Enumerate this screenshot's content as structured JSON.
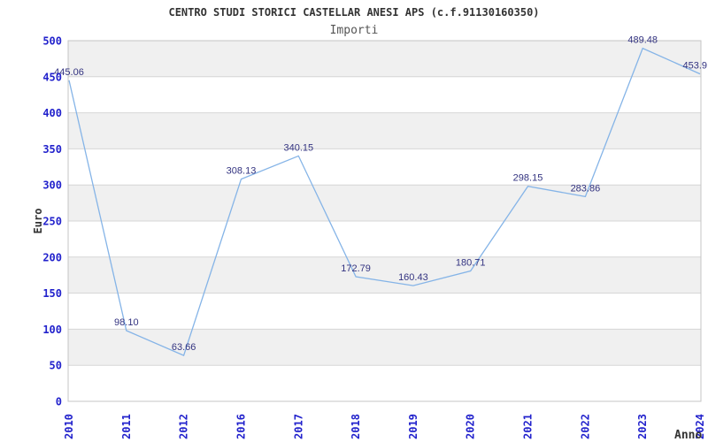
{
  "header": {
    "title": "CENTRO STUDI STORICI CASTELLAR ANESI APS (c.f.91130160350)",
    "subtitle": "Importi"
  },
  "chart_data": {
    "type": "line",
    "title": "CENTRO STUDI STORICI CASTELLAR ANESI APS (c.f.91130160350)",
    "subtitle": "Importi",
    "xlabel": "Anno",
    "ylabel": "Euro",
    "categories": [
      "2010",
      "2011",
      "2012",
      "2016",
      "2017",
      "2018",
      "2019",
      "2020",
      "2021",
      "2022",
      "2023",
      "2024"
    ],
    "values": [
      445.06,
      98.1,
      63.66,
      308.13,
      340.15,
      172.79,
      160.43,
      180.71,
      298.15,
      283.86,
      489.48,
      453.9
    ],
    "value_labels": [
      "445.06",
      "98.10",
      "63.66",
      "308.13",
      "340.15",
      "172.79",
      "160.43",
      "180.71",
      "298.15",
      "283.86",
      "489.48",
      "453.9"
    ],
    "ylim": [
      0,
      500
    ],
    "ytick_step": 50,
    "yticks": [
      0,
      50,
      100,
      150,
      200,
      250,
      300,
      350,
      400,
      450,
      500
    ],
    "grid": "horizontal lines every 50 with alternating gray/white bands",
    "legend": "none",
    "x_tick_rotation_deg": 90,
    "colors": {
      "line": "#85b4e7",
      "tick_label": "#2222cc",
      "value_label": "#333380",
      "band": "#f0f0f0",
      "gridline": "#d6d6d6",
      "border": "#c4c4c4",
      "title": "#333333",
      "subtitle": "#555555",
      "axis_label": "#333333",
      "background": "#ffffff"
    }
  }
}
